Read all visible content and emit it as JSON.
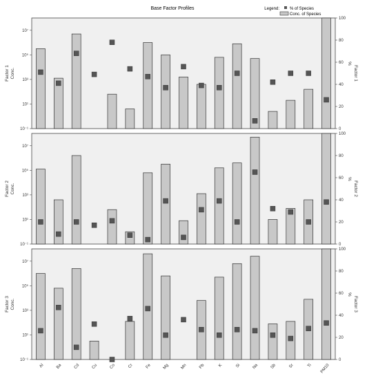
{
  "chart_data": {
    "type": "bar",
    "title": "Base Factor Profiles",
    "legend": {
      "heading": "Legend:",
      "entries": [
        {
          "label": "% of Species",
          "marker": "square"
        },
        {
          "label": "Conc. of Species",
          "marker": "bar"
        }
      ],
      "placement": "top-right"
    },
    "categories": [
      "Al",
      "Ba",
      "Cd",
      "Cu",
      "Co",
      "Cr",
      "Fe",
      "Mg",
      "Mn",
      "Pb",
      "K",
      "Si",
      "Na",
      "Sb",
      "Sr",
      "Ti",
      "PM10"
    ],
    "left_axis": {
      "scale": "log",
      "ticks": [
        "10⁷",
        "10⁵",
        "10³",
        "10¹",
        "10⁻¹"
      ],
      "exponent_range": [
        -1,
        8
      ]
    },
    "right_axis": {
      "scale": "linear",
      "ylim": [
        0,
        100
      ],
      "ticks": [
        "100",
        "80",
        "60",
        "40",
        "20",
        "0"
      ],
      "percent_label": "%"
    },
    "colors": {
      "bar": "#c8c8c8",
      "bar_edge": "#333333",
      "marker": "#555555",
      "panel": "#f0f0f0"
    },
    "panels": [
      {
        "left_label": "Factor 1 Conc.",
        "right_label": "Factor 1",
        "conc_exponents": [
          5.5,
          3.1,
          6.7,
          -1,
          1.8,
          0.6,
          6.0,
          5.0,
          3.2,
          2.6,
          4.8,
          5.9,
          4.7,
          0.4,
          1.3,
          2.2,
          8.5
        ],
        "percent": [
          51,
          41,
          68,
          49,
          78,
          54,
          47,
          37,
          56,
          39,
          37,
          50,
          7,
          42,
          50,
          50,
          26
        ]
      },
      {
        "left_label": "Factor 2 Conc.",
        "right_label": "Factor 2",
        "conc_exponents": [
          5.1,
          2.6,
          6.2,
          -1,
          1.8,
          0.0,
          4.8,
          5.5,
          0.9,
          3.1,
          5.2,
          5.6,
          7.7,
          1.0,
          1.9,
          2.6,
          10.2
        ],
        "percent": [
          20,
          9,
          20,
          17,
          21,
          8,
          4,
          39,
          6,
          31,
          39,
          20,
          65,
          32,
          29,
          20,
          38
        ]
      },
      {
        "left_label": "Factor 3 Conc.",
        "right_label": "Factor 3",
        "conc_exponents": [
          6.0,
          4.8,
          6.4,
          0.5,
          -1,
          2.1,
          7.6,
          5.8,
          -1,
          3.8,
          5.7,
          6.8,
          7.4,
          1.9,
          2.1,
          3.9,
          10.4
        ],
        "percent": [
          26,
          47,
          11,
          32,
          0,
          37,
          46,
          22,
          36,
          27,
          22,
          27,
          26,
          22,
          19,
          28,
          33
        ]
      }
    ]
  }
}
